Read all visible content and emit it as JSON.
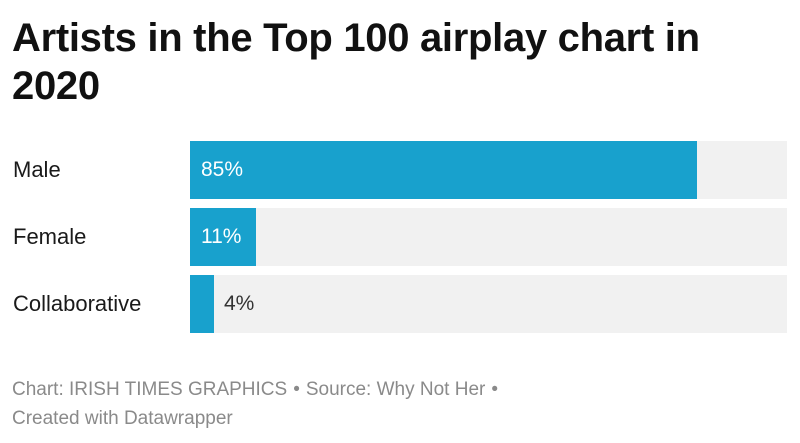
{
  "chart_data": {
    "type": "bar",
    "orientation": "horizontal",
    "title": "Artists in the Top 100 airplay chart in 2020",
    "categories": [
      "Male",
      "Female",
      "Collaborative"
    ],
    "values": [
      85,
      11,
      4
    ],
    "value_labels": [
      "85%",
      "11%",
      "4%"
    ],
    "unit": "%",
    "xlim": [
      0,
      100
    ],
    "bar_color": "#18a1cd",
    "track_color": "#f1f1f1",
    "grid": false,
    "legend": "none"
  },
  "footer": {
    "chart_credit": "Chart: IRISH TIMES GRAPHICS",
    "source": "Source: Why Not Her",
    "separator": "•",
    "created_with": "Created with Datawrapper"
  }
}
